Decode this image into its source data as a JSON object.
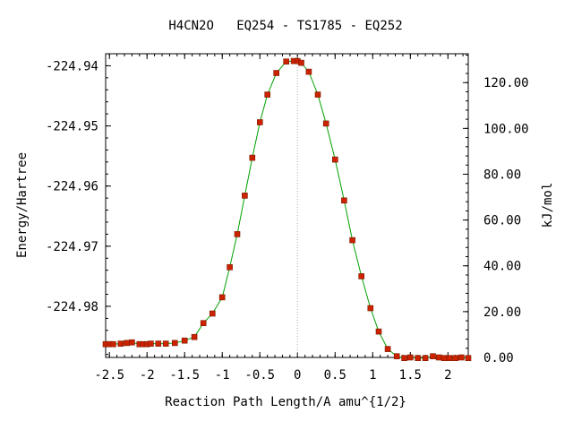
{
  "chart_data": {
    "type": "line",
    "title": "H4CN2O   EQ254 - TS1785 - EQ252",
    "xlabel": "Reaction Path Length/A amu^{1/2}",
    "ylabel": "Energy/Hartree",
    "y2label": "kJ/mol",
    "xlim": [
      -2.55,
      2.27
    ],
    "ylim": [
      -224.9885,
      -224.938
    ],
    "y2lim": [
      0,
      132.6
    ],
    "x_ticks": [
      -2.5,
      -2,
      -1.5,
      -1,
      -0.5,
      0,
      0.5,
      1,
      1.5,
      2
    ],
    "x_tick_labels": [
      "-2.5",
      "-2",
      "-1.5",
      "-1",
      "-0.5",
      "0",
      "0.5",
      "1",
      "1.5",
      "2"
    ],
    "y_ticks": [
      -224.94,
      -224.95,
      -224.96,
      -224.97,
      -224.98
    ],
    "y_tick_labels": [
      "-224.94",
      "-224.95",
      "-224.96",
      "-224.97",
      "-224.98"
    ],
    "y2_ticks": [
      0,
      20,
      40,
      60,
      80,
      100,
      120
    ],
    "y2_tick_labels": [
      "0.00",
      "20.00",
      "40.00",
      "60.00",
      "80.00",
      "100.00",
      "120.00"
    ],
    "vline_x": 0,
    "line_color": "#00a000",
    "marker_color": "#cc2200",
    "marker_edge": "#7a1a00",
    "vline_color": "#aaaaaa",
    "series": [
      {
        "x": [
          -2.55,
          -2.5,
          -2.45,
          -2.35,
          -2.27,
          -2.2,
          -2.1,
          -2.05,
          -2.0,
          -1.95,
          -1.85,
          -1.75,
          -1.63,
          -1.5,
          -1.37,
          -1.25,
          -1.13,
          -1.0,
          -0.9,
          -0.8,
          -0.7,
          -0.6,
          -0.5,
          -0.4,
          -0.28,
          -0.15,
          -0.05,
          0.0,
          0.05,
          0.15,
          0.27,
          0.38,
          0.5,
          0.62,
          0.73,
          0.85,
          0.97,
          1.08,
          1.2,
          1.32,
          1.42,
          1.5,
          1.6,
          1.7,
          1.8,
          1.88,
          1.95,
          2.02,
          2.1,
          2.18,
          2.27
        ],
        "y": [
          -224.9863,
          -224.9863,
          -224.9863,
          -224.9862,
          -224.9861,
          -224.986,
          -224.9863,
          -224.9863,
          -224.9863,
          -224.9862,
          -224.9862,
          -224.9862,
          -224.9861,
          -224.9857,
          -224.9851,
          -224.9828,
          -224.9812,
          -224.9785,
          -224.9735,
          -224.968,
          -224.9616,
          -224.9553,
          -224.9494,
          -224.9448,
          -224.9412,
          -224.9393,
          -224.9392,
          -224.9392,
          -224.9395,
          -224.941,
          -224.9448,
          -224.9496,
          -224.9556,
          -224.9624,
          -224.969,
          -224.975,
          -224.9803,
          -224.9842,
          -224.9871,
          -224.9883,
          -224.9886,
          -224.9885,
          -224.9886,
          -224.9886,
          -224.9883,
          -224.9885,
          -224.9886,
          -224.9886,
          -224.9886,
          -224.9885,
          -224.9886
        ]
      }
    ]
  }
}
